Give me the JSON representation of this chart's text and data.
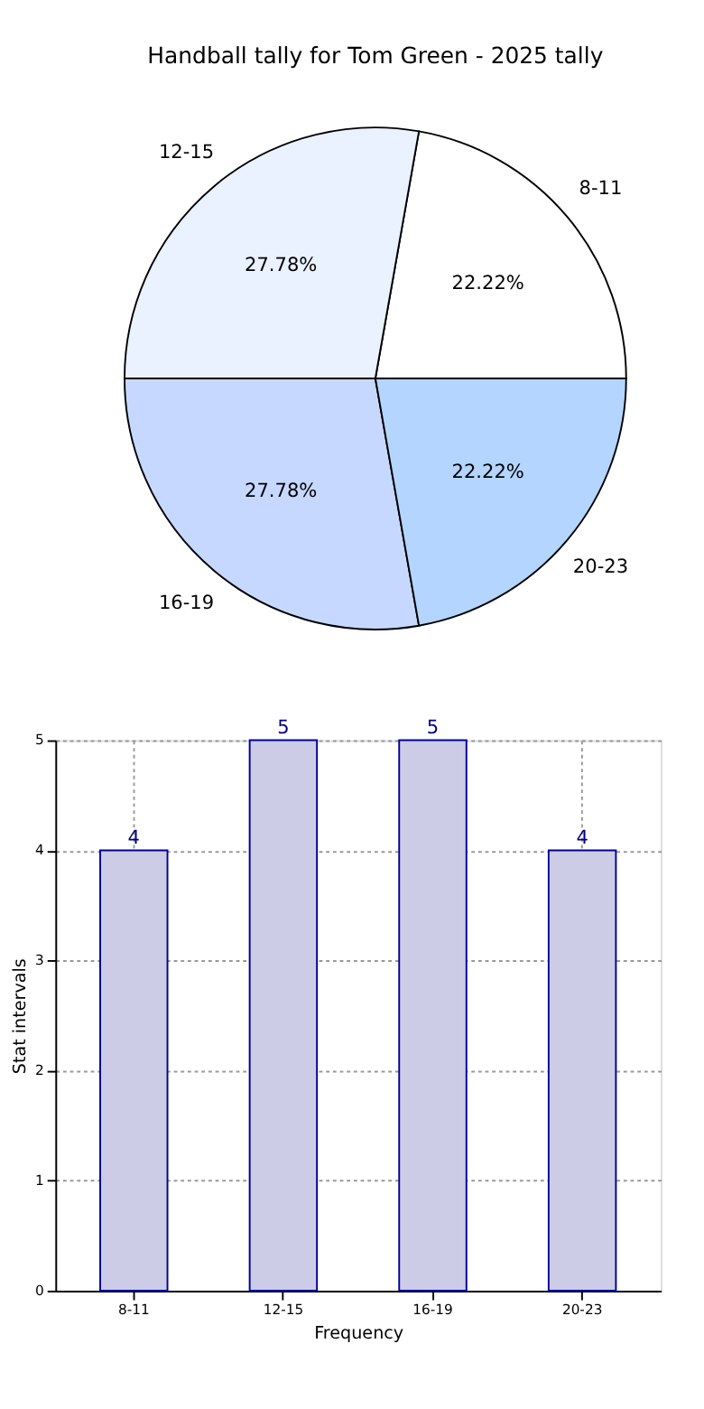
{
  "chart_data": [
    {
      "type": "pie",
      "title": "Handball tally for Tom Green - 2025 tally",
      "categories": [
        "8-11",
        "12-15",
        "16-19",
        "20-23"
      ],
      "values": [
        22.22,
        27.78,
        27.78,
        22.22
      ],
      "colors": [
        "#ffffff",
        "#eaf1ff",
        "#c6d8ff",
        "#b3d5ff"
      ],
      "value_labels": [
        "22.22%",
        "27.78%",
        "27.78%",
        "22.22%"
      ]
    },
    {
      "type": "bar",
      "xlabel": "Frequency",
      "ylabel": "Stat intervals",
      "categories": [
        "8-11",
        "12-15",
        "16-19",
        "20-23"
      ],
      "values": [
        4,
        5,
        5,
        4
      ],
      "color": "#ccccE6",
      "ylim": [
        0,
        5
      ],
      "yticks": [
        0,
        1,
        2,
        3,
        4,
        5
      ],
      "grid": true,
      "data_labels": true
    }
  ]
}
